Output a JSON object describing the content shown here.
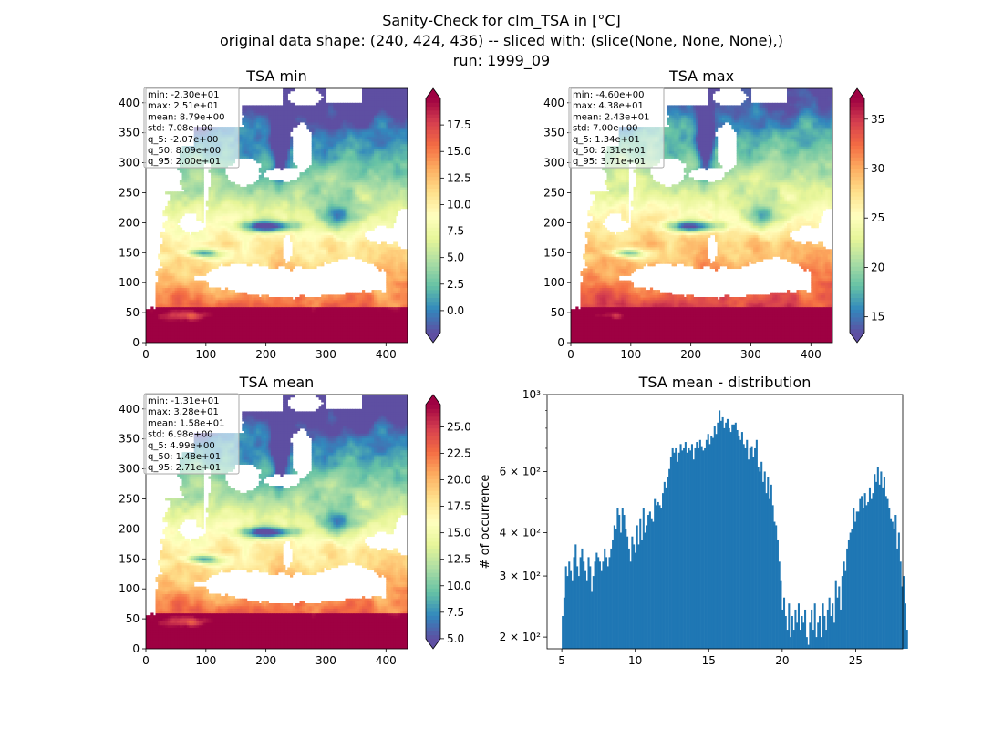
{
  "figure": {
    "title_lines": [
      "Sanity-Check for clm_TSA in [°C]",
      "original data shape: (240, 424, 436) -- sliced with: (slice(None, None, None),)",
      "run: 1999_09"
    ]
  },
  "colors": {
    "spectral_r": [
      "#5e4fa2",
      "#3288bd",
      "#66c2a5",
      "#abdda4",
      "#e6f598",
      "#ffffbf",
      "#fee08b",
      "#fdae61",
      "#f46d43",
      "#d53e4f",
      "#9e0142"
    ],
    "histogram_bar": "#1f77b4"
  },
  "chart_data": [
    {
      "type": "heatmap",
      "title": "TSA min",
      "xlim": [
        0,
        436
      ],
      "ylim": [
        0,
        424
      ],
      "xticks": [
        0,
        100,
        200,
        300,
        400
      ],
      "yticks": [
        0,
        50,
        100,
        150,
        200,
        250,
        300,
        350,
        400
      ],
      "colorbar": {
        "range": [
          -2.07,
          20.0
        ],
        "ticks": [
          0.0,
          2.5,
          5.0,
          7.5,
          10.0,
          12.5,
          15.0,
          17.5
        ],
        "extend": "both"
      },
      "stats": [
        "min: -2.30e+01",
        "max: 2.51e+01",
        "mean: 8.79e+00",
        "std: 7.08e+00",
        "q_5: -2.07e+00",
        "q_50: 8.09e+00",
        "q_95: 2.00e+01"
      ]
    },
    {
      "type": "heatmap",
      "title": "TSA max",
      "xlim": [
        0,
        436
      ],
      "ylim": [
        0,
        424
      ],
      "xticks": [
        0,
        100,
        200,
        300,
        400
      ],
      "yticks": [
        0,
        50,
        100,
        150,
        200,
        250,
        300,
        350,
        400
      ],
      "colorbar": {
        "range": [
          13.4,
          37.1
        ],
        "ticks": [
          15,
          20,
          25,
          30,
          35
        ],
        "extend": "both"
      },
      "stats": [
        "min: -4.60e+00",
        "max: 4.38e+01",
        "mean: 2.43e+01",
        "std: 7.00e+00",
        "q_5: 1.34e+01",
        "q_50: 2.31e+01",
        "q_95: 3.71e+01"
      ]
    },
    {
      "type": "heatmap",
      "title": "TSA mean",
      "xlim": [
        0,
        436
      ],
      "ylim": [
        0,
        424
      ],
      "xticks": [
        0,
        100,
        200,
        300,
        400
      ],
      "yticks": [
        0,
        50,
        100,
        150,
        200,
        250,
        300,
        350,
        400
      ],
      "colorbar": {
        "range": [
          4.99,
          27.1
        ],
        "ticks": [
          5.0,
          7.5,
          10.0,
          12.5,
          15.0,
          17.5,
          20.0,
          22.5,
          25.0
        ],
        "extend": "both"
      },
      "stats": [
        "min: -1.31e+01",
        "max: 3.28e+01",
        "mean: 1.58e+01",
        "std: 6.98e+00",
        "q_5: 4.99e+00",
        "q_50: 1.48e+01",
        "q_95: 2.71e+01"
      ]
    },
    {
      "type": "bar",
      "title": "TSA mean - distribution",
      "ylabel": "# of occurrence",
      "yscale": "log",
      "xlim": [
        4.0,
        28.2
      ],
      "ylim": [
        185,
        1000
      ],
      "xticks": [
        5,
        10,
        15,
        20,
        25
      ],
      "yticks": [
        {
          "value": 200,
          "label": "2 × 10²"
        },
        {
          "value": 300,
          "label": "3 × 10²"
        },
        {
          "value": 400,
          "label": "4 × 10²"
        },
        {
          "value": 600,
          "label": "6 × 10²"
        },
        {
          "value": 1000,
          "label": "10³"
        }
      ],
      "bin_start": 5.0,
      "bin_width": 0.11,
      "values": [
        230,
        260,
        320,
        300,
        330,
        310,
        290,
        340,
        370,
        320,
        300,
        340,
        360,
        330,
        310,
        290,
        340,
        320,
        270,
        300,
        330,
        350,
        340,
        330,
        310,
        330,
        360,
        340,
        320,
        340,
        360,
        380,
        420,
        410,
        470,
        450,
        400,
        470,
        450,
        410,
        390,
        360,
        330,
        390,
        370,
        350,
        420,
        370,
        440,
        380,
        470,
        400,
        420,
        450,
        460,
        440,
        430,
        500,
        480,
        490,
        480,
        470,
        520,
        560,
        540,
        580,
        610,
        660,
        700,
        680,
        700,
        640,
        680,
        720,
        690,
        700,
        730,
        680,
        700,
        690,
        720,
        650,
        700,
        730,
        700,
        740,
        710,
        690,
        700,
        740,
        770,
        720,
        760,
        750,
        810,
        770,
        830,
        900,
        840,
        860,
        800,
        830,
        850,
        800,
        780,
        820,
        820,
        830,
        790,
        760,
        740,
        780,
        720,
        700,
        740,
        650,
        700,
        710,
        660,
        700,
        740,
        620,
        600,
        640,
        560,
        600,
        520,
        580,
        500,
        550,
        480,
        430,
        420,
        380,
        330,
        290,
        240,
        260,
        230,
        210,
        250,
        200,
        230,
        210,
        240,
        220,
        250,
        210,
        230,
        220,
        240,
        200,
        190,
        220,
        240,
        210,
        250,
        200,
        220,
        230,
        200,
        250,
        230,
        210,
        240,
        260,
        230,
        250,
        220,
        290,
        260,
        280,
        240,
        300,
        330,
        310,
        360,
        380,
        400,
        410,
        470,
        430,
        460,
        460,
        500,
        510,
        470,
        520,
        480,
        490,
        540,
        500,
        520,
        590,
        560,
        620,
        550,
        600,
        540,
        580,
        510,
        500,
        470,
        440,
        430,
        410,
        450,
        360,
        400,
        330,
        280,
        300,
        250,
        210
      ]
    }
  ]
}
